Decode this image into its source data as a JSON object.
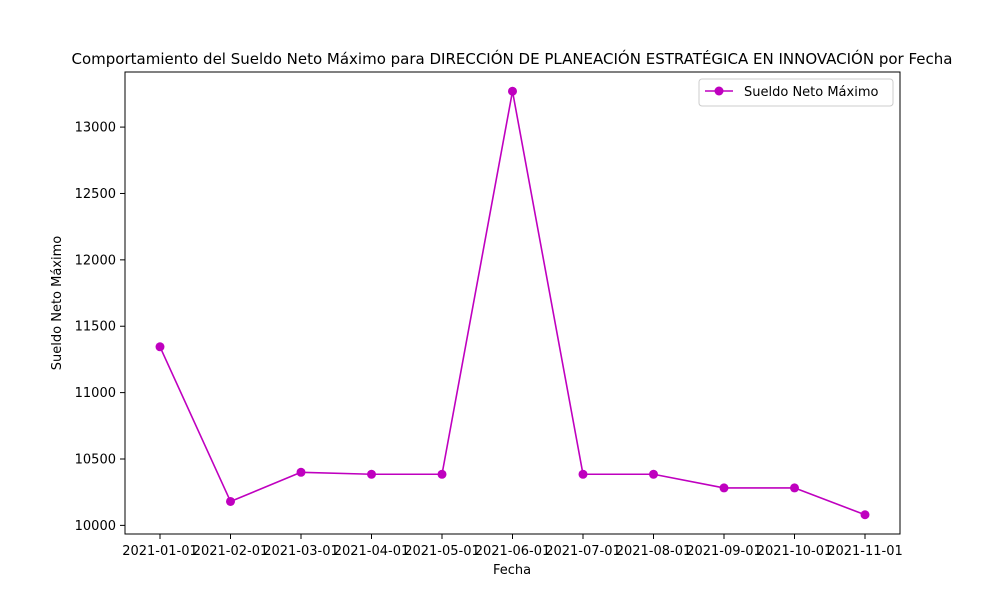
{
  "chart_data": {
    "type": "line",
    "title": "Comportamiento del Sueldo Neto Máximo para DIRECCIÓN DE PLANEACIÓN ESTRATÉGICA EN INNOVACIÓN por Fecha",
    "xlabel": "Fecha",
    "ylabel": "Sueldo Neto Máximo",
    "categories": [
      "2021-01-01",
      "2021-02-01",
      "2021-03-01",
      "2021-04-01",
      "2021-05-01",
      "2021-06-01",
      "2021-07-01",
      "2021-08-01",
      "2021-09-01",
      "2021-10-01",
      "2021-11-01"
    ],
    "series": [
      {
        "name": "Sueldo Neto Máximo",
        "color": "#bf00bf",
        "marker": "circle",
        "values": [
          11345,
          10180,
          10400,
          10385,
          10385,
          13270,
          10385,
          10385,
          10282,
          10282,
          10080
        ]
      }
    ],
    "ylim": [
      9935,
      13415
    ],
    "yticks": [
      10000,
      10500,
      11000,
      11500,
      12000,
      12500,
      13000
    ],
    "grid": false,
    "legend_position": "top-right"
  }
}
